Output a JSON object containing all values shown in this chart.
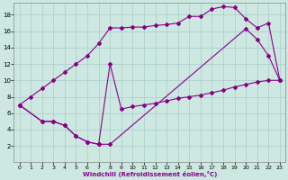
{
  "xlabel": "Windchill (Refroidissement éolien,°C)",
  "background_color": "#cce8e0",
  "grid_color": "#aacccc",
  "line_color": "#880088",
  "xlim": [
    -0.5,
    23.5
  ],
  "ylim": [
    0,
    19.5
  ],
  "xticks": [
    0,
    1,
    2,
    3,
    4,
    5,
    6,
    7,
    8,
    9,
    10,
    11,
    12,
    13,
    14,
    15,
    16,
    17,
    18,
    19,
    20,
    21,
    22,
    23
  ],
  "yticks": [
    2,
    4,
    6,
    8,
    10,
    12,
    14,
    16,
    18
  ],
  "line1_x": [
    0,
    1,
    2,
    3,
    4,
    5,
    6,
    7,
    8,
    9,
    10,
    11,
    12,
    13,
    14,
    15,
    16,
    17,
    18,
    19,
    20,
    21,
    22,
    23
  ],
  "line1_y": [
    7.0,
    8.0,
    9.0,
    10.0,
    11.0,
    12.0,
    13.0,
    14.5,
    16.4,
    16.4,
    16.5,
    16.5,
    16.7,
    16.8,
    17.0,
    17.8,
    17.8,
    18.7,
    19.0,
    18.9,
    17.5,
    16.4,
    17.0,
    10.0
  ],
  "line2_x": [
    0,
    2,
    3,
    4,
    5,
    6,
    7,
    8,
    20,
    21,
    22,
    23
  ],
  "line2_y": [
    7.0,
    5.0,
    5.0,
    4.5,
    3.2,
    2.5,
    2.2,
    2.2,
    16.3,
    15.0,
    13.0,
    10.0
  ],
  "line3_x": [
    0,
    2,
    3,
    4,
    5,
    6,
    7,
    8,
    9,
    10,
    11,
    12,
    13,
    14,
    15,
    16,
    17,
    18,
    19,
    20,
    21,
    22,
    23
  ],
  "line3_y": [
    7.0,
    5.0,
    5.0,
    4.5,
    3.2,
    2.5,
    2.2,
    12.0,
    6.5,
    6.8,
    7.0,
    7.2,
    7.5,
    7.8,
    8.0,
    8.2,
    8.5,
    8.8,
    9.2,
    9.5,
    9.8,
    10.0,
    10.0
  ],
  "marker": "D",
  "markersize": 2,
  "linewidth": 0.8
}
